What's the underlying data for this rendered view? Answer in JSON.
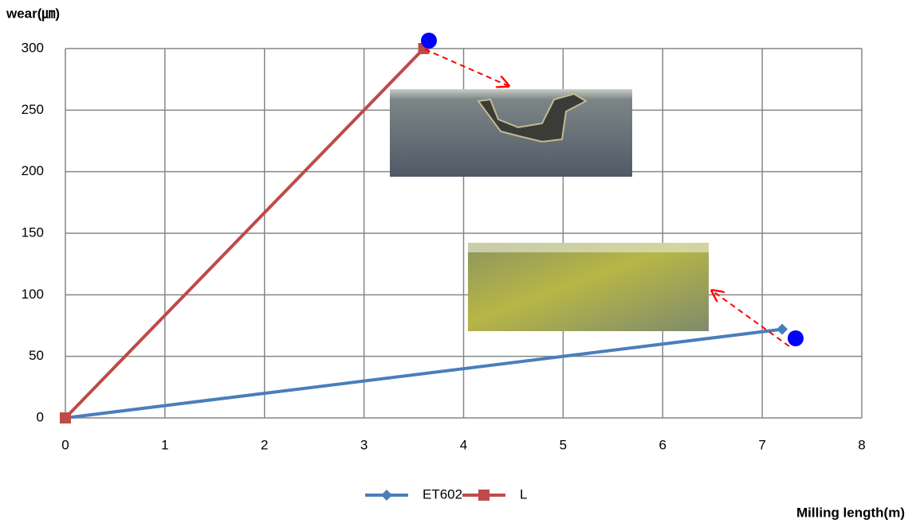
{
  "chart_data": {
    "type": "line",
    "ylabel": "wear(㎛)",
    "xlabel": "Milling length(m)",
    "xlim": [
      0,
      8
    ],
    "xticks": [
      0,
      1,
      2,
      3,
      4,
      5,
      6,
      7,
      8
    ],
    "ylim": [
      0,
      300
    ],
    "yticks": [
      0,
      50,
      100,
      150,
      200,
      250,
      300
    ],
    "grid": true,
    "legend": "bottom",
    "series": [
      {
        "name": "ET602",
        "color": "#4a7ebb",
        "marker": "diamond",
        "x": [
          0,
          7.2
        ],
        "values": [
          0,
          72
        ]
      },
      {
        "name": "L",
        "color": "#be4b48",
        "marker": "square",
        "x": [
          0,
          3.6
        ],
        "values": [
          0,
          300
        ]
      }
    ]
  }
}
